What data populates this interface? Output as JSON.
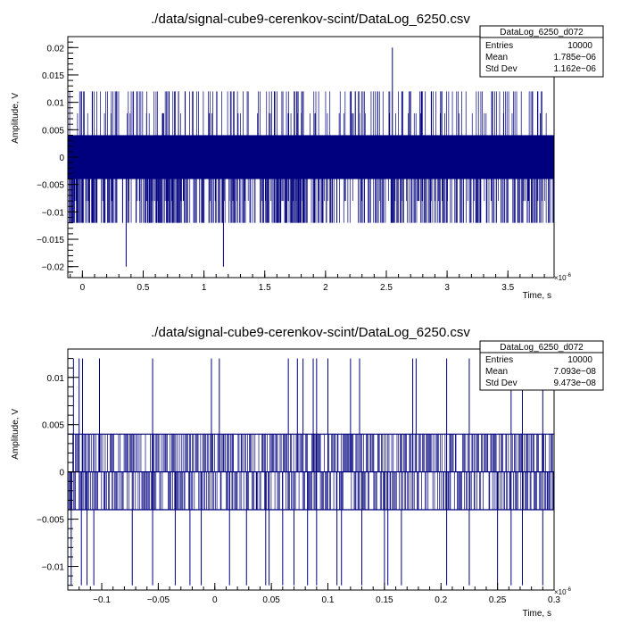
{
  "chart_data": [
    {
      "type": "line",
      "title": "./data/signal-cube9-cerenkov-scint/DataLog_6250.csv",
      "xlabel": "Time, s",
      "ylabel": "Amplitude, V",
      "x_exponent": "×10",
      "x_exponent_power": "-6",
      "xlim": [
        -0.12,
        3.88
      ],
      "ylim": [
        -0.022,
        0.022
      ],
      "x_ticks": [
        0,
        0.5,
        1,
        1.5,
        2,
        2.5,
        3,
        3.5
      ],
      "x_tick_labels": [
        "0",
        "0.5",
        "1",
        "1.5",
        "2",
        "2.5",
        "3",
        "3.5"
      ],
      "y_ticks": [
        -0.02,
        -0.015,
        -0.01,
        -0.005,
        0,
        0.005,
        0.01,
        0.015,
        0.02
      ],
      "y_tick_labels": [
        "−0.02",
        "−0.015",
        "−0.01",
        "−0.005",
        "0",
        "0.005",
        "0.01",
        "0.015",
        "0.02"
      ],
      "color": "#00007f",
      "band": {
        "low": -0.004,
        "high": 0.004
      },
      "common_levels": [
        -0.012,
        -0.008,
        0.008,
        0.012
      ],
      "spikes_up": [
        [
          2.55,
          0.02
        ]
      ],
      "spikes_down": [
        [
          0.36,
          -0.02
        ],
        [
          1.16,
          -0.02
        ]
      ],
      "dense_regions": [
        [
          -0.12,
          0.1
        ],
        [
          0.5,
          0.85
        ],
        [
          1.55,
          1.75
        ]
      ],
      "stats": {
        "name": "DataLog_6250_d072",
        "rows": [
          {
            "label": "Entries",
            "value": "10000"
          },
          {
            "label": "Mean",
            "value": "1.785e−06"
          },
          {
            "label": "Std Dev",
            "value": "1.162e−06"
          }
        ]
      }
    },
    {
      "type": "line",
      "title": "./data/signal-cube9-cerenkov-scint/DataLog_6250.csv",
      "xlabel": "Time, s",
      "ylabel": "Amplitude, V",
      "x_exponent": "×10",
      "x_exponent_power": "-6",
      "xlim": [
        -0.13,
        0.3
      ],
      "ylim": [
        -0.0125,
        0.013
      ],
      "x_ticks": [
        -0.1,
        -0.05,
        0,
        0.05,
        0.1,
        0.15,
        0.2,
        0.25,
        0.3
      ],
      "x_tick_labels": [
        "−0.1",
        "−0.05",
        "0",
        "0.05",
        "0.1",
        "0.15",
        "0.2",
        "0.25",
        "0.3"
      ],
      "y_ticks": [
        -0.01,
        -0.005,
        0,
        0.005,
        0.01
      ],
      "y_tick_labels": [
        "−0.01",
        "−0.005",
        "0",
        "0.005",
        "0.01"
      ],
      "color": "#00007f",
      "band": {
        "low": -0.004,
        "high": 0.004
      },
      "spikes_up": [
        [
          -0.125,
          0.012
        ],
        [
          -0.12,
          0.012
        ],
        [
          -0.117,
          0.012
        ],
        [
          -0.102,
          0.012
        ],
        [
          -0.055,
          0.012
        ],
        [
          -0.003,
          0.012
        ],
        [
          0.004,
          0.012
        ],
        [
          0.065,
          0.012
        ],
        [
          0.073,
          0.012
        ],
        [
          0.078,
          0.012
        ],
        [
          0.087,
          0.012
        ],
        [
          0.09,
          0.012
        ],
        [
          0.1,
          0.012
        ],
        [
          0.12,
          0.012
        ],
        [
          0.128,
          0.012
        ],
        [
          0.175,
          0.012
        ],
        [
          0.178,
          0.012
        ],
        [
          0.205,
          0.012
        ],
        [
          0.225,
          0.012
        ],
        [
          0.262,
          0.012
        ],
        [
          0.272,
          0.012
        ],
        [
          0.29,
          0.012
        ]
      ],
      "spikes_down": [
        [
          -0.127,
          -0.012
        ],
        [
          -0.118,
          -0.012
        ],
        [
          -0.113,
          -0.012
        ],
        [
          -0.107,
          -0.012
        ],
        [
          -0.073,
          -0.012
        ],
        [
          -0.055,
          -0.012
        ],
        [
          -0.035,
          -0.012
        ],
        [
          -0.022,
          -0.012
        ],
        [
          -0.012,
          -0.012
        ],
        [
          0.013,
          -0.012
        ],
        [
          0.028,
          -0.012
        ],
        [
          0.045,
          -0.012
        ],
        [
          0.048,
          -0.012
        ],
        [
          0.06,
          -0.012
        ],
        [
          0.07,
          -0.012
        ],
        [
          0.082,
          -0.012
        ],
        [
          0.09,
          -0.012
        ],
        [
          0.108,
          -0.012
        ],
        [
          0.112,
          -0.012
        ],
        [
          0.13,
          -0.012
        ],
        [
          0.15,
          -0.012
        ],
        [
          0.153,
          -0.012
        ],
        [
          0.165,
          -0.012
        ],
        [
          0.205,
          -0.012
        ],
        [
          0.225,
          -0.012
        ],
        [
          0.25,
          -0.012
        ],
        [
          0.262,
          -0.012
        ],
        [
          0.272,
          -0.012
        ],
        [
          0.29,
          -0.012
        ]
      ],
      "stats": {
        "name": "DataLog_6250_d072",
        "rows": [
          {
            "label": "Entries",
            "value": "10000"
          },
          {
            "label": "Mean",
            "value": "7.093e−08"
          },
          {
            "label": "Std Dev",
            "value": "9.473e−08"
          }
        ]
      }
    }
  ]
}
